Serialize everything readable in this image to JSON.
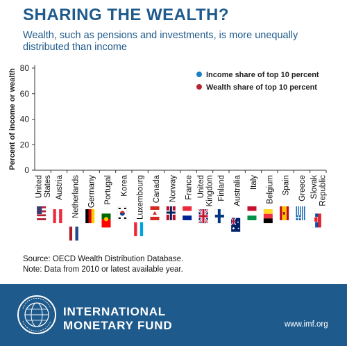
{
  "header": {
    "title": "SHARING THE WEALTH?",
    "subtitle": "Wealth, such as pensions and investments, is more unequally distributed than income"
  },
  "chart_data": {
    "type": "scatter",
    "ylabel": "Percent of income or wealth",
    "ylim": [
      0,
      80
    ],
    "yticks": [
      0,
      20,
      40,
      60,
      80
    ],
    "grid": false,
    "legend_position": "top-right",
    "categories": [
      "United States",
      "Austria",
      "Netherlands",
      "Germany",
      "Portugal",
      "Korea",
      "Luxembourg",
      "Canada",
      "Norway",
      "France",
      "United Kingdom",
      "Finland",
      "Australia",
      "Italy",
      "Belgium",
      "Spain",
      "Greece",
      "Slovak Republic"
    ],
    "series": [
      {
        "name": "Income share of top 10 percent",
        "color": "#1a7fc4",
        "values": []
      },
      {
        "name": "Wealth share of top 10 percent",
        "color": "#b5272d",
        "values": []
      }
    ]
  },
  "flags": [
    "us-flag",
    "austria-flag",
    "netherlands-flag",
    "germany-flag",
    "portugal-flag",
    "korea-flag",
    "luxembourg-flag",
    "canada-flag",
    "norway-flag",
    "france-flag",
    "uk-flag",
    "finland-flag",
    "australia-flag",
    "italy-flag",
    "belgium-flag",
    "spain-flag",
    "greece-flag",
    "slovakia-flag"
  ],
  "notes": {
    "source": "Source: OECD Wealth Distribution Database.",
    "note": "Note: Data from 2010 or latest available year."
  },
  "footer": {
    "org_line1": "INTERNATIONAL",
    "org_line2": "MONETARY FUND",
    "url": "www.imf.org",
    "seal_text": "INTERNATIONAL MONETARY FUND"
  },
  "colors": {
    "brand_blue": "#1f5a8c",
    "axis": "#333333"
  }
}
